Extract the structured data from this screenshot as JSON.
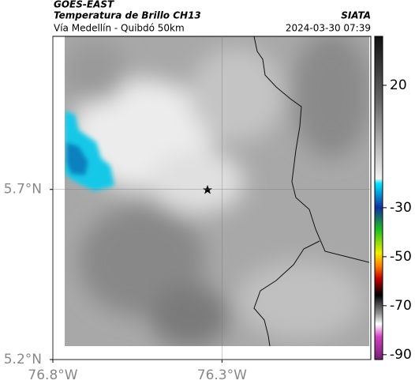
{
  "header": {
    "title": "GOES-EAST",
    "subtitle": "Temperatura de Brillo CH13",
    "region": "Vía Medellín - Quibdó 50km",
    "source": "SIATA",
    "timestamp": "2024-03-30 07:39"
  },
  "map": {
    "xlim": [
      -76.8,
      -75.86
    ],
    "ylim": [
      5.2,
      6.15
    ],
    "xticks": [
      {
        "value": -76.8,
        "label": "76.8°W"
      },
      {
        "value": -76.3,
        "label": "76.3°W"
      }
    ],
    "yticks": [
      {
        "value": 5.7,
        "label": "5.7°N"
      },
      {
        "value": 5.2,
        "label": "5.2°N"
      }
    ],
    "grid": true
  },
  "colorbar": {
    "clim": [
      -92,
      40
    ],
    "ticks": [
      20,
      -30,
      -50,
      -70,
      -90
    ]
  }
}
